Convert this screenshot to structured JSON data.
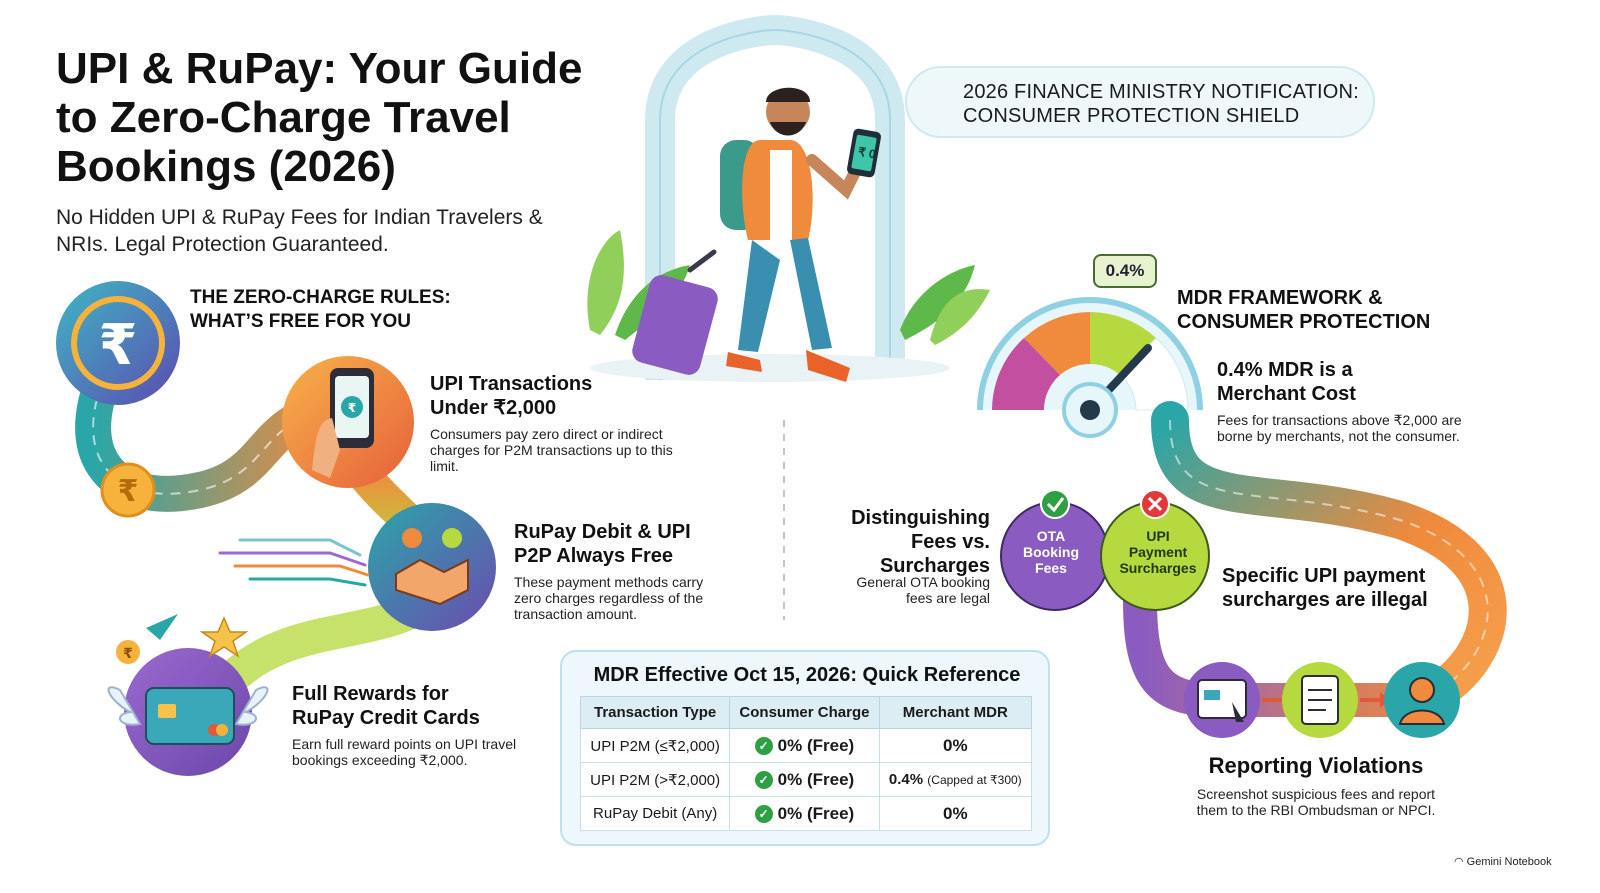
{
  "title": "UPI & RuPay: Your Guide to Zero-Charge Travel Bookings (2026)",
  "subtitle": "No Hidden UPI & RuPay Fees for Indian Travelers & NRIs. Legal Protection Guaranteed.",
  "notice": {
    "line1": "2026 FINANCE MINISTRY NOTIFICATION:",
    "line2": "CONSUMER PROTECTION SHIELD"
  },
  "phone_text": "₹ 0",
  "rules": {
    "heading_line1": "THE ZERO-CHARGE RULES:",
    "heading_line2": "WHAT’S FREE FOR YOU",
    "items": [
      {
        "title_line1": "UPI Transactions",
        "title_line2": "Under ₹2,000",
        "body": "Consumers pay zero direct or indirect charges for P2M transactions up to this limit.",
        "icon": "hand-phone-icon"
      },
      {
        "title_line1": "RuPay Debit & UPI",
        "title_line2": "P2P Always Free",
        "body": "These payment methods carry zero charges regardless of the transaction amount.",
        "icon": "handshake-icon"
      },
      {
        "title_line1": "Full Rewards for",
        "title_line2": "RuPay Credit Cards",
        "body": "Earn full reward points on UPI travel bookings exceeding ₹2,000.",
        "icon": "winged-card-icon"
      }
    ]
  },
  "mdr": {
    "bubble": "0.4%",
    "heading_line1": "MDR FRAMEWORK &",
    "heading_line2": "CONSUMER PROTECTION",
    "sub_line1": "0.4% MDR is a",
    "sub_line2": "Merchant Cost",
    "body": "Fees for transactions above ₹2,000 are borne by merchants, not the consumer."
  },
  "fees": {
    "heading_line1": "Distinguishing",
    "heading_line2": "Fees vs.",
    "heading_line3": "Surcharges",
    "body_line1": "General OTA booking",
    "body_line2": "fees are legal",
    "venn_left": "OTA Booking Fees",
    "venn_right": "UPI Payment Surcharges",
    "illegal_line1": "Specific UPI payment",
    "illegal_line2": "surcharges are illegal"
  },
  "reporting": {
    "heading": "Reporting Violations",
    "body_line1": "Screenshot suspicious fees and report",
    "body_line2": "them to the RBI Ombudsman or NPCI."
  },
  "table": {
    "title": "MDR Effective Oct 15, 2026: Quick Reference",
    "headers": [
      "Transaction Type",
      "Consumer Charge",
      "Merchant MDR"
    ],
    "rows": [
      {
        "type": "UPI P2M (≤₹2,000)",
        "charge": "0% (Free)",
        "mdr": "0%",
        "mdr_note": ""
      },
      {
        "type": "UPI P2M (>₹2,000)",
        "charge": "0% (Free)",
        "mdr": "0.4%",
        "mdr_note": "(Capped at ₹300)"
      },
      {
        "type": "RuPay Debit (Any)",
        "charge": "0% (Free)",
        "mdr": "0%",
        "mdr_note": ""
      }
    ]
  },
  "brand": "Gemini Notebook",
  "colors": {
    "teal": "#2aa6a8",
    "orange": "#f08a3c",
    "purple": "#8a5cc2",
    "lime": "#b5d93f",
    "check_green": "#2ea043"
  }
}
